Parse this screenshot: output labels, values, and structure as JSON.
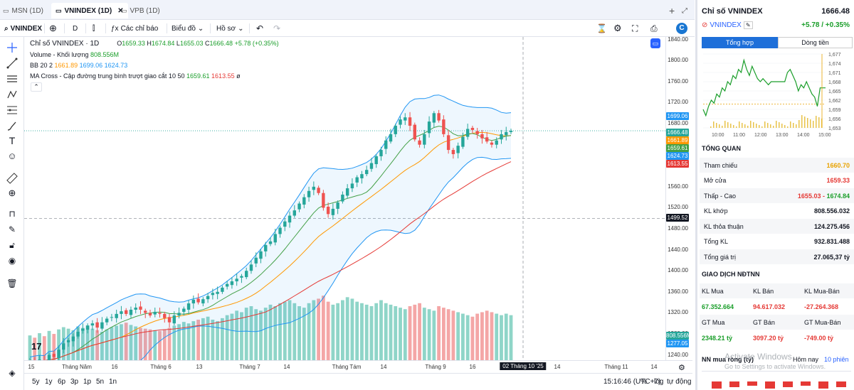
{
  "tabs": [
    {
      "label": "MSN (1D)"
    },
    {
      "label": "VNINDEX (1D)"
    },
    {
      "label": "VPB (1D)"
    }
  ],
  "toolbar": {
    "symbol": "VNINDEX",
    "interval": "D",
    "indicators": "Các chỉ báo",
    "chart_type": "Biểu đồ",
    "profile": "Hồ sơ"
  },
  "legend": {
    "title": "Chỉ số VNINDEX · 1D",
    "ohlc": {
      "o_label": "O",
      "o": "1659.33",
      "h_label": "H",
      "h": "1674.84",
      "l_label": "L",
      "l": "1655.03",
      "c_label": "C",
      "c": "1666.48",
      "chg": "+5.78 (+0.35%)"
    },
    "volume": {
      "label": "Volume - Khối lượng",
      "value": "808.556M"
    },
    "bb": {
      "label": "BB 20 2",
      "v1": "1661.89",
      "v2": "1699.06",
      "v3": "1624.73"
    },
    "ma": {
      "label": "MA Cross - Cập đường trung bình trượt giao cắt 10 50",
      "v1": "1659.61",
      "v2": "1613.55",
      "suffix": "ø"
    }
  },
  "price_axis": {
    "ticks": [
      "1840.00",
      "1800.00",
      "1760.00",
      "1720.00",
      "1680.00",
      "1640.00",
      "1600.00",
      "1560.00",
      "1520.00",
      "1480.00",
      "1440.00",
      "1400.00",
      "1360.00",
      "1320.00",
      "1280.00",
      "1240.00"
    ],
    "labels": [
      {
        "text": "1699.06",
        "color": "#2196f3"
      },
      {
        "text": "1666.48",
        "color": "#26a69a"
      },
      {
        "text": "1661.89",
        "color": "#ff9800"
      },
      {
        "text": "1659.61",
        "color": "#43a047"
      },
      {
        "text": "1624.73",
        "color": "#2196f3"
      },
      {
        "text": "1613.55",
        "color": "#e53935"
      },
      {
        "text": "1499.52",
        "color": "#131722"
      },
      {
        "text": "808.556M",
        "color": "#26a69a"
      },
      {
        "text": "1277.05",
        "color": "#2196f3"
      }
    ]
  },
  "time_axis": {
    "ticks": [
      "15",
      "Tháng Năm",
      "16",
      "Tháng 6",
      "13",
      "Tháng 7",
      "14",
      "Tháng Tám",
      "14",
      "Tháng 9",
      "16",
      "02 Tháng 10 '25",
      "14",
      "Tháng 11",
      "14"
    ]
  },
  "bottom": {
    "ranges": [
      "5y",
      "1y",
      "6p",
      "3p",
      "1p",
      "5n",
      "1n"
    ],
    "time": "15:16:46 (UTC+7)",
    "pct": "%",
    "log": "log",
    "auto": "tự động"
  },
  "panel": {
    "title": "Chỉ số VNINDEX",
    "price": "1666.48",
    "symbol": "VNINDEX",
    "change": "+5.78 / +0.35%",
    "tabs": [
      "Tổng hợp",
      "Dòng tiền"
    ],
    "mini_y": [
      "1,677",
      "1,674",
      "1,671",
      "1,668",
      "1,665",
      "1,662",
      "1,659",
      "1,656",
      "1,653"
    ],
    "mini_x": [
      "10:00",
      "11:00",
      "12:00",
      "13:00",
      "14:00",
      "15:00"
    ],
    "overview_title": "TỔNG QUAN",
    "overview": [
      {
        "label": "Tham chiếu",
        "value": "1660.70",
        "cls": "o"
      },
      {
        "label": "Mở cửa",
        "value": "1659.33",
        "cls": "r"
      },
      {
        "label": "Thấp - Cao",
        "value": "1655.03",
        "value2": "1674.84",
        "cls": "r"
      },
      {
        "label": "KL khớp",
        "value": "808.556.032",
        "cls": "k"
      },
      {
        "label": "KL thỏa thuận",
        "value": "124.275.456",
        "cls": "k"
      },
      {
        "label": "Tổng KL",
        "value": "932.831.488",
        "cls": "k"
      },
      {
        "label": "Tổng giá trị",
        "value": "27.065,37 tỷ",
        "cls": "k"
      }
    ],
    "foreign_title": "GIAO DỊCH NĐTNN",
    "foreign_head1": [
      "KL Mua",
      "KL Bán",
      "KL Mua-Bán"
    ],
    "foreign_val1": [
      "67.352.664",
      "94.617.032",
      "-27.264.368"
    ],
    "foreign_head2": [
      "GT Mua",
      "GT Bán",
      "GT Mua-Bán"
    ],
    "foreign_val2": [
      "2348.21 tỷ",
      "3097.20 tỷ",
      "-749.00 tỷ"
    ],
    "nn_title": "NN mua ròng (tỷ)",
    "nn_today": "Hôm nay",
    "nn_10": "10 phiên",
    "watermark1": "Activate Windows",
    "watermark2": "Go to Settings to activate Windows."
  },
  "chart_data": {
    "type": "candlestick",
    "title": "Chỉ số VNINDEX · 1D",
    "ylim": [
      1230,
      1845
    ],
    "last_close": 1666.48,
    "crosshair_price": 1499.52,
    "crosshair_date": "02 Tháng 10 '25",
    "note": "approximate daily path read from the chart",
    "closes": [
      1230,
      1226,
      1231,
      1228,
      1240,
      1236,
      1250,
      1262,
      1268,
      1275,
      1284,
      1290,
      1296,
      1300,
      1292,
      1302,
      1309,
      1312,
      1318,
      1323,
      1318,
      1326,
      1330,
      1326,
      1320,
      1315,
      1322,
      1318,
      1310,
      1302,
      1315,
      1320,
      1328,
      1338,
      1345,
      1340,
      1346,
      1352,
      1358,
      1360,
      1368,
      1375,
      1380,
      1385,
      1390,
      1400,
      1412,
      1425,
      1437,
      1449,
      1456,
      1470,
      1482,
      1494,
      1505,
      1515,
      1528,
      1540,
      1552,
      1560,
      1548,
      1520,
      1508,
      1518,
      1530,
      1545,
      1557,
      1566,
      1578,
      1584,
      1592,
      1605,
      1618,
      1630,
      1648,
      1660,
      1676,
      1688,
      1692,
      1676,
      1650,
      1640,
      1660,
      1684,
      1700,
      1686,
      1660,
      1630,
      1622,
      1638,
      1655,
      1670,
      1668,
      1660,
      1652,
      1646,
      1640,
      1648,
      1660,
      1664,
      1666.48
    ],
    "volumes": [
      330,
      300,
      360,
      320,
      390,
      350,
      410,
      440,
      420,
      400,
      450,
      430,
      460,
      420,
      400,
      380,
      410,
      440,
      460,
      480,
      500,
      470,
      450,
      430,
      420,
      410,
      400,
      390,
      410,
      430,
      460,
      480,
      510,
      490,
      520,
      540,
      560,
      580,
      540,
      520,
      560,
      600,
      620,
      660,
      640,
      700,
      720,
      680,
      660,
      700,
      740,
      720,
      760,
      780,
      800,
      760,
      720,
      700,
      760,
      800,
      820,
      860,
      780,
      740,
      760,
      800,
      840,
      820,
      780,
      760,
      740,
      720,
      760,
      800,
      760,
      740,
      720,
      700,
      680,
      720,
      740,
      760,
      700,
      680,
      660,
      720,
      700,
      680,
      660,
      640,
      620,
      600,
      580,
      620,
      640,
      660,
      640,
      620,
      600,
      620,
      600
    ]
  }
}
